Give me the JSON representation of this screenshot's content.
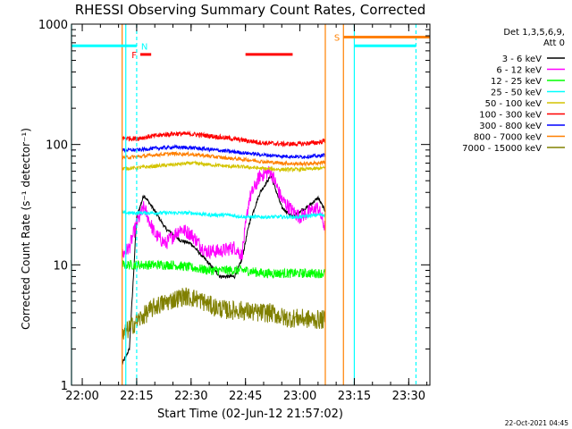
{
  "chart_data": {
    "type": "line",
    "title": "RHESSI Observing Summary Count Rates, Corrected",
    "xlabel": "Start Time (02-Jun-12 21:57:02)",
    "ylabel": "Corrected Count Rate (s⁻¹ detector⁻¹)",
    "y_scale": "log",
    "ylim": [
      1,
      1000
    ],
    "xlim": [
      "21:57:02",
      "23:35:50"
    ],
    "x_ticks": [
      "22:00",
      "22:15",
      "22:30",
      "22:45",
      "23:00",
      "23:15",
      "23:30"
    ],
    "y_ticks": [
      "1",
      "10",
      "100",
      "1000"
    ],
    "grid": false,
    "legend_position": "right",
    "legend_header": [
      "Det 1,3,5,6,9,",
      "Att 0"
    ],
    "footer_date": "22-Oct-2021 04:45",
    "series": [
      {
        "name": "3 - 6 keV",
        "color": "#000000",
        "x": [
          "22:11",
          "22:13",
          "22:15",
          "22:17",
          "22:20",
          "22:23",
          "22:27",
          "22:30",
          "22:34",
          "22:38",
          "22:42",
          "22:44",
          "22:46",
          "22:49",
          "22:52",
          "22:55",
          "22:58",
          "23:00",
          "23:02",
          "23:05",
          "23:07"
        ],
        "values": [
          1.5,
          2.0,
          25,
          38,
          28,
          20,
          16,
          15,
          11,
          8,
          8,
          11,
          22,
          40,
          55,
          30,
          25,
          28,
          30,
          36,
          28
        ]
      },
      {
        "name": "6 - 12 keV",
        "color": "#ff00ff",
        "x": [
          "22:11",
          "22:13",
          "22:15",
          "22:17",
          "22:20",
          "22:23",
          "22:27",
          "22:30",
          "22:34",
          "22:38",
          "22:42",
          "22:44",
          "22:46",
          "22:49",
          "22:52",
          "22:55",
          "22:58",
          "23:00",
          "23:02",
          "23:05",
          "23:07"
        ],
        "values": [
          12,
          14,
          22,
          30,
          18,
          15,
          20,
          18,
          13,
          13,
          14,
          12,
          35,
          55,
          60,
          35,
          28,
          25,
          27,
          30,
          20
        ]
      },
      {
        "name": "12 - 25 keV",
        "color": "#00ff00",
        "x": [
          "22:11",
          "22:15",
          "22:20",
          "22:25",
          "22:30",
          "22:35",
          "22:40",
          "22:45",
          "22:50",
          "22:55",
          "23:00",
          "23:05",
          "23:07"
        ],
        "values": [
          10,
          10,
          10,
          10,
          9.5,
          9,
          9,
          9,
          8.5,
          8.5,
          8.5,
          8.5,
          8.5
        ]
      },
      {
        "name": "25 - 50 keV",
        "color": "#00ffff",
        "x": [
          "22:11",
          "22:15",
          "22:20",
          "22:25",
          "22:30",
          "22:35",
          "22:40",
          "22:45",
          "22:50",
          "22:55",
          "23:00",
          "23:05",
          "23:07"
        ],
        "values": [
          27,
          27,
          27,
          27,
          27,
          26,
          26,
          25,
          25,
          25,
          25,
          26,
          26
        ]
      },
      {
        "name": "50 - 100 keV",
        "color": "#d4c400",
        "x": [
          "22:11",
          "22:15",
          "22:20",
          "22:25",
          "22:30",
          "22:35",
          "22:40",
          "22:45",
          "22:50",
          "22:55",
          "23:00",
          "23:05",
          "23:07"
        ],
        "values": [
          63,
          64,
          66,
          68,
          70,
          68,
          66,
          65,
          63,
          62,
          62,
          63,
          64
        ]
      },
      {
        "name": "100 - 300 keV",
        "color": "#ff0000",
        "x": [
          "22:11",
          "22:15",
          "22:20",
          "22:25",
          "22:30",
          "22:35",
          "22:40",
          "22:45",
          "22:50",
          "22:55",
          "23:00",
          "23:05",
          "23:07"
        ],
        "values": [
          113,
          112,
          118,
          123,
          122,
          118,
          113,
          108,
          103,
          101,
          101,
          104,
          107
        ]
      },
      {
        "name": "300 - 800 keV",
        "color": "#0000ff",
        "x": [
          "22:11",
          "22:15",
          "22:20",
          "22:25",
          "22:30",
          "22:35",
          "22:40",
          "22:45",
          "22:50",
          "22:55",
          "23:00",
          "23:05",
          "23:07"
        ],
        "values": [
          90,
          90,
          93,
          95,
          94,
          91,
          88,
          85,
          82,
          80,
          79,
          80,
          82
        ]
      },
      {
        "name": "800 - 7000 keV",
        "color": "#ff8000",
        "x": [
          "22:11",
          "22:15",
          "22:20",
          "22:25",
          "22:30",
          "22:35",
          "22:40",
          "22:45",
          "22:50",
          "22:55",
          "23:00",
          "23:05",
          "23:07"
        ],
        "values": [
          78,
          79,
          82,
          84,
          83,
          80,
          77,
          75,
          72,
          70,
          69,
          70,
          72
        ]
      },
      {
        "name": "7000 - 15000 keV",
        "color": "#808000",
        "x": [
          "22:11",
          "22:13",
          "22:17",
          "22:20",
          "22:24",
          "22:28",
          "22:32",
          "22:36",
          "22:40",
          "22:44",
          "22:48",
          "22:52",
          "22:56",
          "23:00",
          "23:04",
          "23:07"
        ],
        "values": [
          2.5,
          3.0,
          3.8,
          4.5,
          5.0,
          5.5,
          5.2,
          4.5,
          4.2,
          4.2,
          4.0,
          4.0,
          3.6,
          3.6,
          3.5,
          3.5
        ]
      }
    ],
    "flag_bars": [
      {
        "label": "N",
        "color": "#00ffff",
        "y": 660,
        "segments": [
          [
            "21:57:02",
            "22:15"
          ],
          [
            "23:15",
            "23:32"
          ]
        ]
      },
      {
        "label": "S",
        "color": "#ff8000",
        "y": 780,
        "segments": [
          [
            "23:12",
            "23:35:50"
          ]
        ]
      },
      {
        "label": "F",
        "color": "#ff0000",
        "y": 560,
        "segments": [
          [
            "22:16",
            "22:19"
          ],
          [
            "22:45",
            "22:58"
          ]
        ]
      }
    ],
    "vertical_markers": [
      {
        "color": "#00ffff",
        "style": "solid",
        "x": [
          "21:57:02",
          "22:12",
          "23:15"
        ]
      },
      {
        "color": "#00ffff",
        "style": "dashed",
        "x": [
          "22:15",
          "23:32"
        ]
      },
      {
        "color": "#ff8000",
        "style": "solid",
        "x": [
          "22:11",
          "23:07",
          "23:12"
        ]
      }
    ]
  }
}
